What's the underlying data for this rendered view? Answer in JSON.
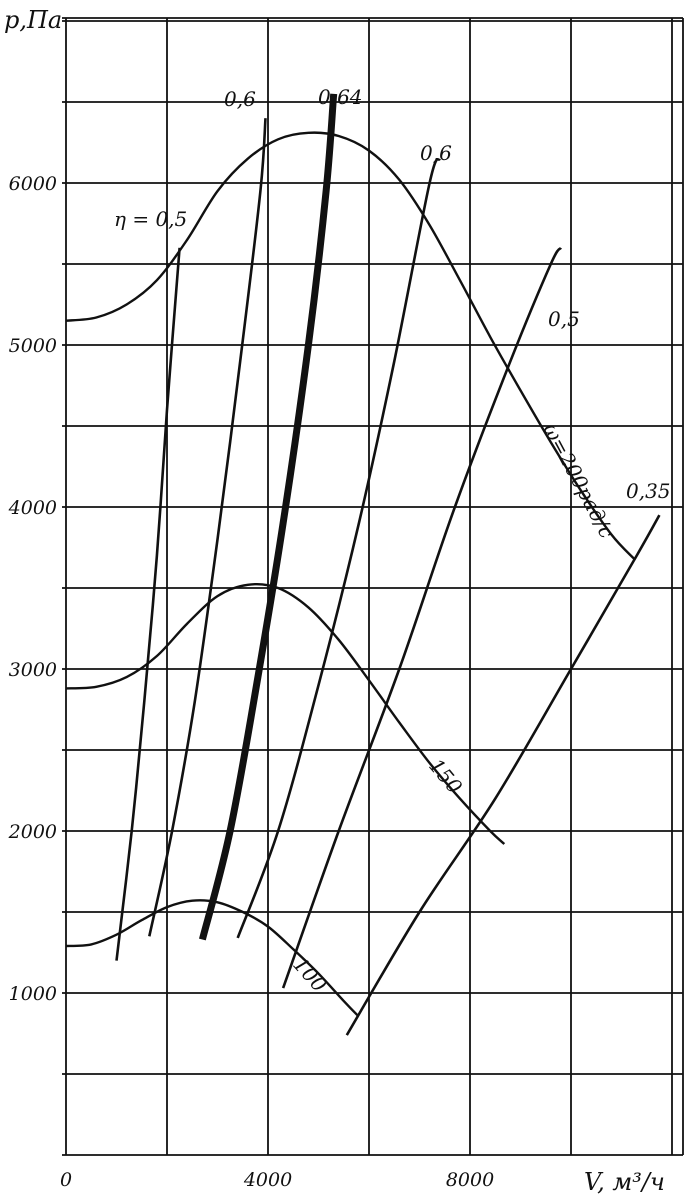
{
  "chart_data": {
    "type": "line",
    "title": "",
    "xlabel": "V, м³/ч",
    "ylabel": "p,Па",
    "xlim": [
      0,
      12200
    ],
    "ylim": [
      0,
      7000
    ],
    "grid": true,
    "x_ticks": [
      {
        "value": 0,
        "label": "0"
      },
      {
        "value": 4000,
        "label": "4000"
      },
      {
        "value": 8000,
        "label": "8000"
      }
    ],
    "y_ticks": [
      {
        "value": 1000,
        "label": "1000"
      },
      {
        "value": 2000,
        "label": "2000"
      },
      {
        "value": 3000,
        "label": "3000"
      },
      {
        "value": 4000,
        "label": "4000"
      },
      {
        "value": 5000,
        "label": "5000"
      },
      {
        "value": 6000,
        "label": "6000"
      }
    ],
    "pressure_curves": [
      {
        "name": "ω=200рад/с",
        "label_text": "ω=200рад/с",
        "points": [
          [
            0,
            5150
          ],
          [
            600,
            5170
          ],
          [
            1200,
            5250
          ],
          [
            1800,
            5400
          ],
          [
            2400,
            5650
          ],
          [
            3000,
            5950
          ],
          [
            3600,
            6150
          ],
          [
            4200,
            6270
          ],
          [
            4800,
            6310
          ],
          [
            5400,
            6290
          ],
          [
            6000,
            6200
          ],
          [
            6600,
            6020
          ],
          [
            7200,
            5740
          ],
          [
            7800,
            5400
          ],
          [
            8400,
            5050
          ],
          [
            9000,
            4720
          ],
          [
            9600,
            4400
          ],
          [
            10200,
            4100
          ],
          [
            10800,
            3830
          ],
          [
            11250,
            3680
          ]
        ]
      },
      {
        "name": "150",
        "label_text": "150",
        "points": [
          [
            0,
            2880
          ],
          [
            600,
            2890
          ],
          [
            1200,
            2950
          ],
          [
            1800,
            3080
          ],
          [
            2400,
            3280
          ],
          [
            3000,
            3450
          ],
          [
            3600,
            3520
          ],
          [
            4200,
            3500
          ],
          [
            4800,
            3380
          ],
          [
            5400,
            3180
          ],
          [
            6000,
            2930
          ],
          [
            6600,
            2670
          ],
          [
            7200,
            2420
          ],
          [
            7800,
            2200
          ],
          [
            8400,
            2000
          ],
          [
            8680,
            1920
          ]
        ]
      },
      {
        "name": "100",
        "label_text": "100",
        "points": [
          [
            0,
            1290
          ],
          [
            500,
            1300
          ],
          [
            1000,
            1360
          ],
          [
            1500,
            1450
          ],
          [
            2000,
            1530
          ],
          [
            2500,
            1570
          ],
          [
            3000,
            1560
          ],
          [
            3500,
            1500
          ],
          [
            4000,
            1410
          ],
          [
            4500,
            1270
          ],
          [
            5000,
            1120
          ],
          [
            5500,
            950
          ],
          [
            5780,
            860
          ]
        ]
      }
    ],
    "efficiency_curves": [
      {
        "name": "η=0,5",
        "label_text": "η = 0,5",
        "points": [
          [
            1000,
            1200
          ],
          [
            1300,
            2000
          ],
          [
            1550,
            2800
          ],
          [
            1800,
            3700
          ],
          [
            2000,
            4600
          ],
          [
            2250,
            5600
          ]
        ]
      },
      {
        "name": "0,6",
        "label_text": "0,6",
        "points": [
          [
            1650,
            1350
          ],
          [
            2100,
            2000
          ],
          [
            2550,
            2800
          ],
          [
            3000,
            3800
          ],
          [
            3450,
            4900
          ],
          [
            3850,
            5950
          ],
          [
            3950,
            6400
          ]
        ]
      },
      {
        "name": "0,64",
        "label_text": "0,64",
        "points": [
          [
            2700,
            1330
          ],
          [
            3250,
            2000
          ],
          [
            3800,
            2950
          ],
          [
            4300,
            3900
          ],
          [
            4800,
            5000
          ],
          [
            5150,
            5950
          ],
          [
            5300,
            6550
          ]
        ]
      },
      {
        "name": "0,6",
        "label_text": "0,6",
        "points": [
          [
            3400,
            1340
          ],
          [
            4200,
            2000
          ],
          [
            5000,
            2900
          ],
          [
            5800,
            3900
          ],
          [
            6500,
            4900
          ],
          [
            7200,
            6000
          ],
          [
            7400,
            6150
          ]
        ]
      },
      {
        "name": "0,5",
        "label_text": "0,5",
        "points": [
          [
            4300,
            1030
          ],
          [
            5400,
            2000
          ],
          [
            6600,
            3000
          ],
          [
            7700,
            4000
          ],
          [
            8800,
            4900
          ],
          [
            9600,
            5500
          ],
          [
            9800,
            5600
          ]
        ]
      },
      {
        "name": "0,35",
        "label_text": "0,35",
        "points": [
          [
            5560,
            740
          ],
          [
            7000,
            1500
          ],
          [
            8500,
            2200
          ],
          [
            10000,
            3000
          ],
          [
            11300,
            3700
          ],
          [
            11750,
            3950
          ]
        ]
      }
    ]
  }
}
